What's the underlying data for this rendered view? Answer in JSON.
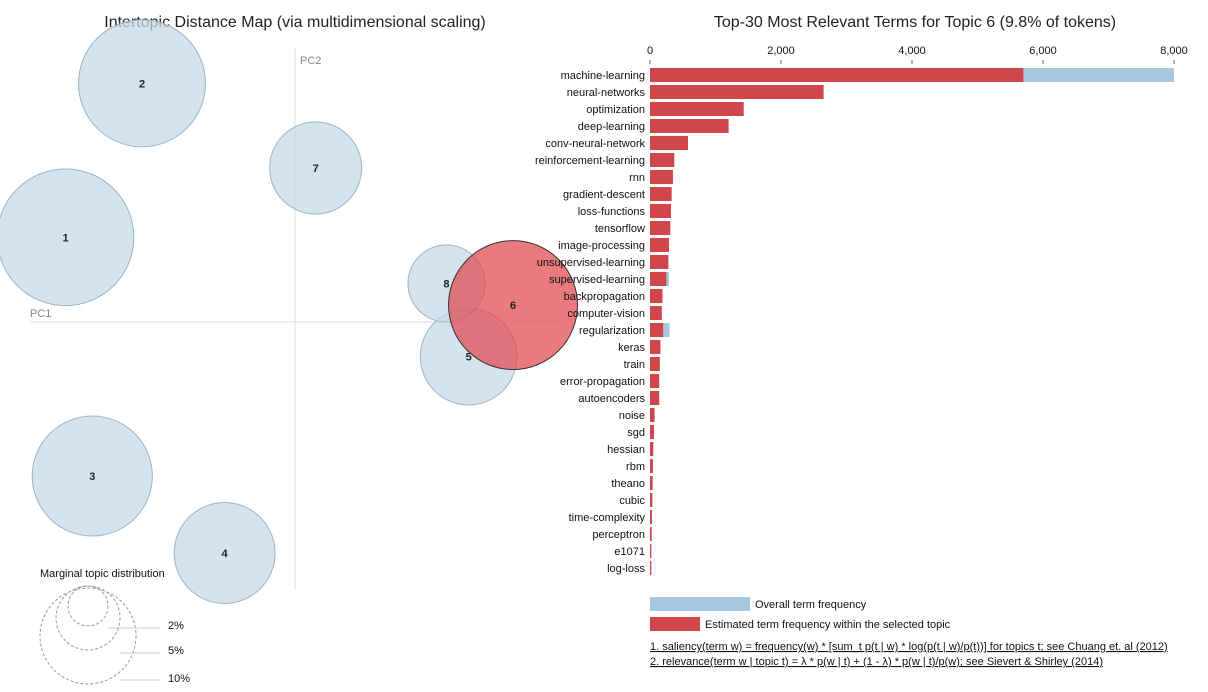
{
  "left": {
    "title": "Intertopic Distance Map (via multidimensional scaling)",
    "pc1": "PC1",
    "pc2": "PC2",
    "marginal_title": "Marginal topic distribution",
    "marginal_levels": [
      "2%",
      "5%",
      "10%"
    ]
  },
  "right": {
    "title": "Top-30 Most Relevant Terms for Topic 6 (9.8% of tokens)",
    "legend_overall": "Overall term frequency",
    "legend_estimated": "Estimated term frequency within the selected topic",
    "footnote1": "1. saliency(term w) = frequency(w) * [sum_t p(t | w) * log(p(t | w)/p(t))] for topics t; see Chuang et. al (2012)",
    "footnote2": "2. relevance(term w | topic t) = λ * p(w | t) + (1 - λ) * p(w | t)/p(w); see Sievert & Shirley (2014)"
  },
  "colors": {
    "bubble": "#c6dbea",
    "bubble_stroke": "#9fb3c4",
    "selected": "#e0484d",
    "overall_bar": "#a6c8e0",
    "topic_bar": "#d1454c"
  },
  "chart_data": [
    {
      "type": "scatter",
      "title": "Intertopic Distance Map (via multidimensional scaling)",
      "xlabel": "PC1",
      "ylabel": "PC2",
      "selected_topic": 6,
      "topics": [
        {
          "id": "1",
          "x": -0.3,
          "y": 0.11,
          "marginal_pct": 11.0
        },
        {
          "id": "2",
          "x": -0.2,
          "y": 0.31,
          "marginal_pct": 9.5
        },
        {
          "id": "3",
          "x": -0.265,
          "y": -0.2,
          "marginal_pct": 8.5
        },
        {
          "id": "4",
          "x": -0.092,
          "y": -0.3,
          "marginal_pct": 6.0
        },
        {
          "id": "5",
          "x": 0.227,
          "y": -0.045,
          "marginal_pct": 5.5
        },
        {
          "id": "6",
          "x": 0.285,
          "y": 0.022,
          "marginal_pct": 9.8
        },
        {
          "id": "7",
          "x": 0.027,
          "y": 0.2,
          "marginal_pct": 5.0
        },
        {
          "id": "8",
          "x": 0.198,
          "y": 0.05,
          "marginal_pct": 3.5
        }
      ]
    },
    {
      "type": "bar",
      "orientation": "horizontal",
      "title": "Top-30 Most Relevant Terms for Topic 6 (9.8% of tokens)",
      "xlim": [
        0,
        8000
      ],
      "xticks": [
        0,
        2000,
        4000,
        6000,
        8000
      ],
      "xtick_labels": [
        "0",
        "2,000",
        "4,000",
        "6,000",
        "8,000"
      ],
      "categories": [
        "machine-learning",
        "neural-networks",
        "optimization",
        "deep-learning",
        "conv-neural-network",
        "reinforcement-learning",
        "rnn",
        "gradient-descent",
        "loss-functions",
        "tensorflow",
        "image-processing",
        "unsupervised-learning",
        "supervised-learning",
        "backpropagation",
        "computer-vision",
        "regularization",
        "keras",
        "train",
        "error-propagation",
        "autoencoders",
        "noise",
        "sgd",
        "hessian",
        "rbm",
        "theano",
        "cubic",
        "time-complexity",
        "perceptron",
        "e1071",
        "log-loss"
      ],
      "series": [
        {
          "name": "Overall term frequency",
          "values": [
            8000,
            2650,
            1430,
            1200,
            580,
            370,
            350,
            330,
            320,
            310,
            290,
            280,
            290,
            190,
            180,
            300,
            160,
            150,
            140,
            140,
            70,
            60,
            50,
            45,
            40,
            35,
            30,
            25,
            20,
            20
          ]
        },
        {
          "name": "Estimated term frequency within the selected topic",
          "values": [
            5700,
            2650,
            1430,
            1200,
            580,
            370,
            350,
            330,
            320,
            310,
            290,
            280,
            250,
            190,
            180,
            200,
            160,
            150,
            140,
            140,
            70,
            60,
            50,
            45,
            40,
            35,
            30,
            25,
            20,
            20
          ]
        }
      ]
    }
  ]
}
